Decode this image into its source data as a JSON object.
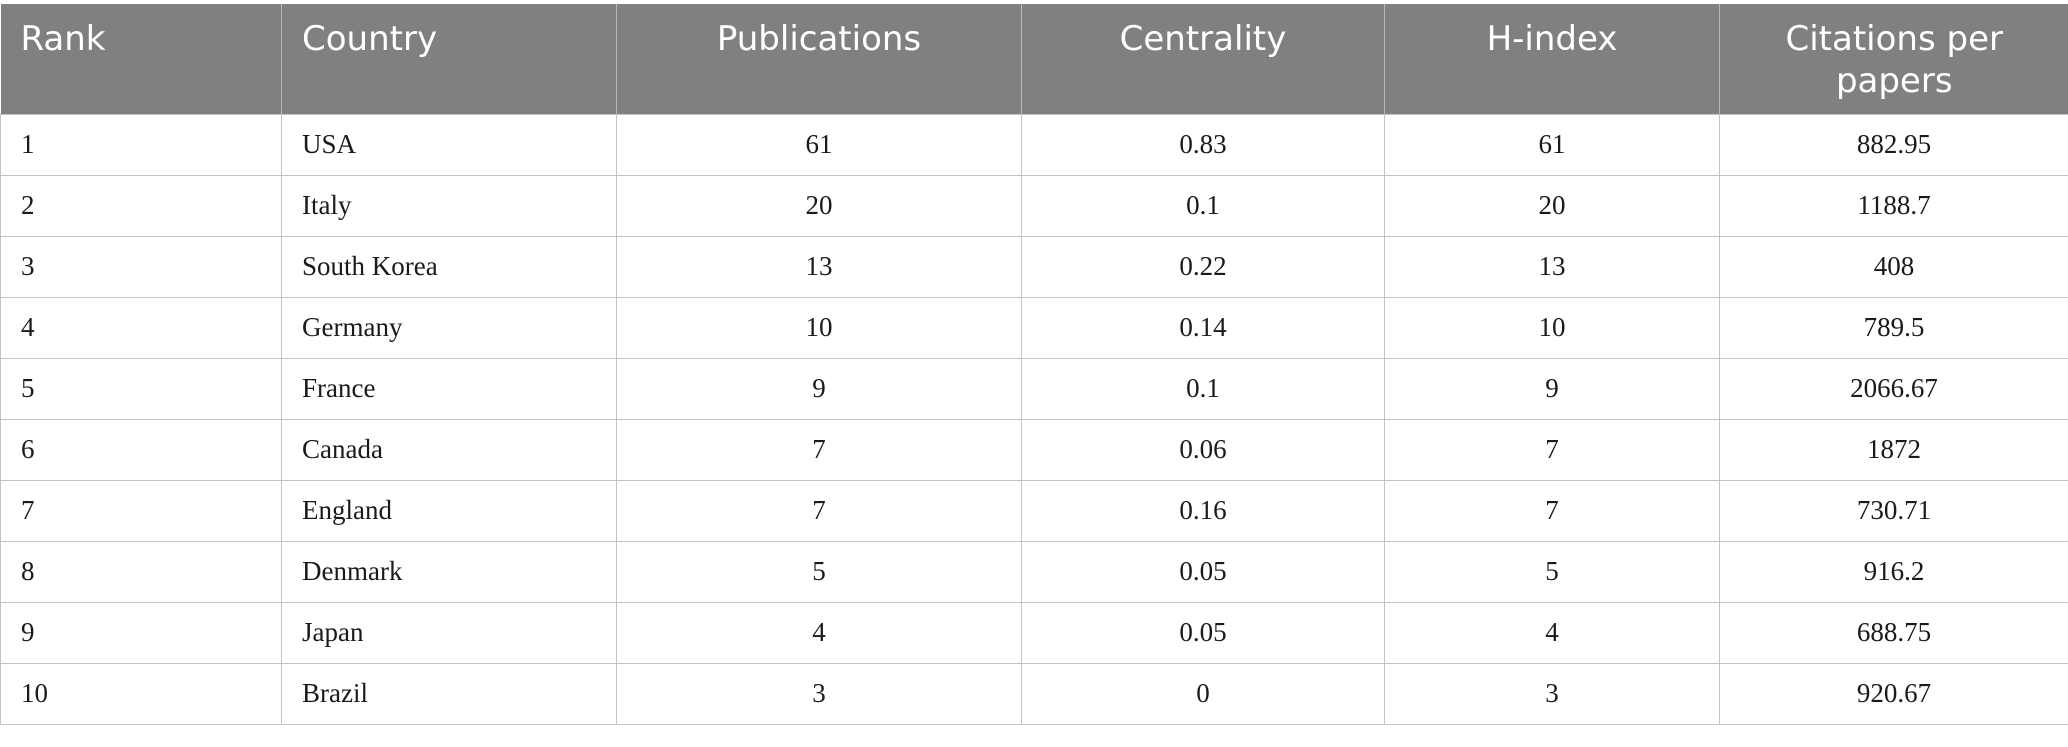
{
  "table": {
    "headers": [
      "Rank",
      "Country",
      "Publications",
      "Centrality",
      "H-index",
      "Citations per papers"
    ],
    "rows": [
      [
        "1",
        "USA",
        "61",
        "0.83",
        "61",
        "882.95"
      ],
      [
        "2",
        "Italy",
        "20",
        "0.1",
        "20",
        "1188.7"
      ],
      [
        "3",
        "South Korea",
        "13",
        "0.22",
        "13",
        "408"
      ],
      [
        "4",
        "Germany",
        "10",
        "0.14",
        "10",
        "789.5"
      ],
      [
        "5",
        "France",
        "9",
        "0.1",
        "9",
        "2066.67"
      ],
      [
        "6",
        "Canada",
        "7",
        "0.06",
        "7",
        "1872"
      ],
      [
        "7",
        "England",
        "7",
        "0.16",
        "7",
        "730.71"
      ],
      [
        "8",
        "Denmark",
        "5",
        "0.05",
        "5",
        "916.2"
      ],
      [
        "9",
        "Japan",
        "4",
        "0.05",
        "4",
        "688.75"
      ],
      [
        "10",
        "Brazil",
        "3",
        "0",
        "3",
        "920.67"
      ]
    ]
  },
  "colors": {
    "header_background": "#7f8180",
    "header_text": "#ffffff",
    "grid_line": "#c4c4c4"
  }
}
